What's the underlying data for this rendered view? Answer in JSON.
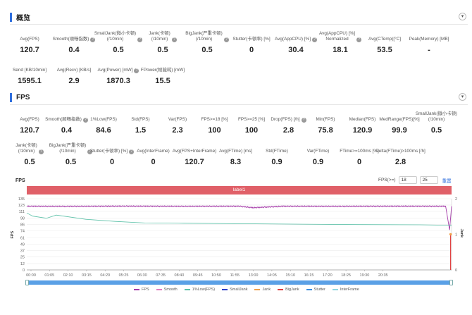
{
  "overview": {
    "title": "概览",
    "collapse_glyph": "▾",
    "row1": [
      {
        "label": "Avg(FPS)",
        "value": "120.7"
      },
      {
        "label": "Smooth(顺畅指数)",
        "value": "0.4",
        "help": true
      },
      {
        "label": "SmallJank(微小卡顿)\n(/10min)",
        "value": "0.5",
        "help": true
      },
      {
        "label": "Jank(卡顿)\n(/10min)",
        "value": "0.5",
        "help": true
      },
      {
        "label": "BigJank(严重卡顿)\n(/10min)",
        "value": "0.5",
        "help": true
      },
      {
        "label": "Stutter(卡顿率) [%]",
        "value": "0"
      },
      {
        "label": "Avg(AppCPU) [%]",
        "value": "30.4",
        "help": true
      },
      {
        "label": "Avg(AppCPU) [%]\nNormalized",
        "value": "18.1",
        "help": true
      },
      {
        "label": "Avg(CTemp)[°C]",
        "value": "53.5"
      },
      {
        "label": "Peak(Memory) [MB]",
        "value": "-"
      }
    ],
    "row2": [
      {
        "label": "Send [KB/10min]",
        "value": "1595.1"
      },
      {
        "label": "Avg(Recv) [KB/s]",
        "value": "2.9"
      },
      {
        "label": "Avg(Power) [mW]",
        "value": "1870.3",
        "help": true
      },
      {
        "label": "FPower(帧能耗) [mW]",
        "value": "15.5"
      }
    ]
  },
  "fps_section": {
    "title": "FPS",
    "collapse_glyph": "▾",
    "row1": [
      {
        "label": "Avg(FPS)",
        "value": "120.7"
      },
      {
        "label": "Smooth(顺畅指数)",
        "value": "0.4",
        "help": true
      },
      {
        "label": "1%Low(FPS)",
        "value": "84.6"
      },
      {
        "label": "Std(FPS)",
        "value": "1.5"
      },
      {
        "label": "Var(FPS)",
        "value": "2.3"
      },
      {
        "label": "FPS>=18 [%]",
        "value": "100"
      },
      {
        "label": "FPS>=25 [%]",
        "value": "100"
      },
      {
        "label": "Drop(FPS) [/h]",
        "value": "2.8",
        "help": true
      },
      {
        "label": "Min(FPS)",
        "value": "75.8"
      },
      {
        "label": "Median(FPS)",
        "value": "120.9"
      },
      {
        "label": "MedRange(FPS)[%]",
        "value": "99.9"
      },
      {
        "label": "SmallJank(微小卡顿)\n(/10min)",
        "value": "0.5"
      }
    ],
    "row2": [
      {
        "label": "Jank(卡顿)\n(/10min)",
        "value": "0.5",
        "help": true
      },
      {
        "label": "BigJank(严重卡顿)\n(/10min)",
        "value": "0.5",
        "help": true
      },
      {
        "label": "Stutter(卡顿率) [%]",
        "value": "0",
        "help": true
      },
      {
        "label": "Avg(InterFrame)",
        "value": "0"
      },
      {
        "label": "Avg(FPS+InterFrame)",
        "value": "120.7"
      },
      {
        "label": "Avg(FTime) [ms]",
        "value": "8.3"
      },
      {
        "label": "Std(FTime)",
        "value": "0.9"
      },
      {
        "label": "Var(FTime)",
        "value": "0.9"
      },
      {
        "label": "FTime>=100ms [%]",
        "value": "0"
      },
      {
        "label": "Delta(FTime)>100ms [/h]",
        "value": "2.8"
      }
    ]
  },
  "chart_panel": {
    "title": "FPS",
    "filter_label": "FPS(>=)",
    "filter_min": "18",
    "filter_max": "25",
    "reset_label": "重置",
    "band_label": "label1"
  },
  "chart_data": {
    "type": "line",
    "ylabel": "FPS",
    "ylabel_right": "Jank",
    "y_ticks": [
      "0",
      "12",
      "25",
      "37",
      "49",
      "61",
      "74",
      "86",
      "98",
      "111",
      "123",
      "135"
    ],
    "y_right_ticks": [
      "0",
      "1",
      "2"
    ],
    "x_ticks": [
      "00:00",
      "01:05",
      "02:10",
      "03:15",
      "04:20",
      "05:25",
      "06:30",
      "07:35",
      "08:40",
      "09:45",
      "10:50",
      "11:55",
      "13:00",
      "14:05",
      "15:10",
      "16:15",
      "17:20",
      "18:25",
      "19:30",
      "20:35"
    ],
    "ylim": [
      0,
      135
    ],
    "y_right_lim": [
      0,
      2
    ],
    "x_end_minutes": 21.6,
    "series": [
      {
        "name": "FPS",
        "color": "#a43aa8",
        "points": [
          [
            0,
            120.7
          ],
          [
            2,
            120.5
          ],
          [
            5,
            120.9
          ],
          [
            8,
            120.6
          ],
          [
            10.8,
            120.8
          ],
          [
            11.5,
            118
          ],
          [
            13,
            120.7
          ],
          [
            16,
            120.6
          ],
          [
            19,
            120.8
          ],
          [
            21.3,
            120.7
          ],
          [
            21.5,
            75.8
          ],
          [
            21.6,
            120.7
          ]
        ]
      },
      {
        "name": "1%Low(FPS)",
        "color": "#5cc1a8",
        "points": [
          [
            0,
            108
          ],
          [
            0.3,
            102
          ],
          [
            1,
            98
          ],
          [
            1.5,
            104
          ],
          [
            3,
            96
          ],
          [
            4.5,
            92
          ],
          [
            6,
            89
          ],
          [
            8,
            88.5
          ],
          [
            11,
            87.5
          ],
          [
            14,
            86.8
          ],
          [
            17,
            86
          ],
          [
            20,
            85.5
          ],
          [
            21.6,
            84.6
          ]
        ]
      }
    ],
    "jank_markers": [
      {
        "name": "BigJank",
        "x": 21.55,
        "y_right": 1
      }
    ],
    "legend": [
      {
        "name": "FPS",
        "color": "#a43aa8"
      },
      {
        "name": "Smooth",
        "color": "#e27cc0"
      },
      {
        "name": "1%Low(FPS)",
        "color": "#5cc1a8"
      },
      {
        "name": "SmallJank",
        "color": "#2c3ec8"
      },
      {
        "name": "Jank",
        "color": "#f0a04b"
      },
      {
        "name": "BigJank",
        "color": "#e04040"
      },
      {
        "name": "Stutter",
        "color": "#3a8de0"
      },
      {
        "name": "InterFrame",
        "color": "#8fd6e0"
      }
    ]
  }
}
